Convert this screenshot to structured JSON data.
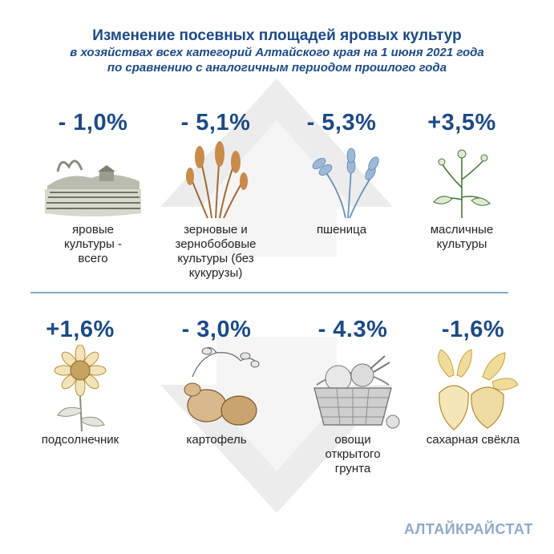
{
  "header": {
    "title": "Изменение посевных площадей яровых культур",
    "subtitle_line1": "в хозяйствах всех категорий Алтайского края на 1 июня 2021 года",
    "subtitle_line2": "по сравнению с аналогичным периодом прошлого года"
  },
  "crops": [
    {
      "percent": "- 1,0%",
      "label": "яровые культуры - всего",
      "icon": "field-landscape-icon"
    },
    {
      "percent": "- 5,1%",
      "label": "зерновые и зернобобовые культуры (без кукурузы)",
      "icon": "wheat-bundle-icon"
    },
    {
      "percent": "- 5,3%",
      "label": "пшеница",
      "icon": "wheat-ears-icon"
    },
    {
      "percent": "+3,5%",
      "label": "масличные культуры",
      "icon": "rapeseed-plant-icon"
    },
    {
      "percent": "+1,6%",
      "label": "подсолнечник",
      "icon": "sunflower-icon"
    },
    {
      "percent": "- 3,0%",
      "label": "картофель",
      "icon": "potato-icon"
    },
    {
      "percent": "- 4.3%",
      "label": "овощи открытого грунта",
      "icon": "vegetable-basket-icon"
    },
    {
      "percent": "-1,6%",
      "label": "сахарная свёкла",
      "icon": "sugar-beet-icon"
    }
  ],
  "brand": "АЛТАЙКРАЙСТАТ",
  "colors": {
    "accent": "#1d4a86",
    "brand": "#8fa9c8",
    "divider": "#8aa8c9",
    "background_arrow": "#ececec"
  }
}
